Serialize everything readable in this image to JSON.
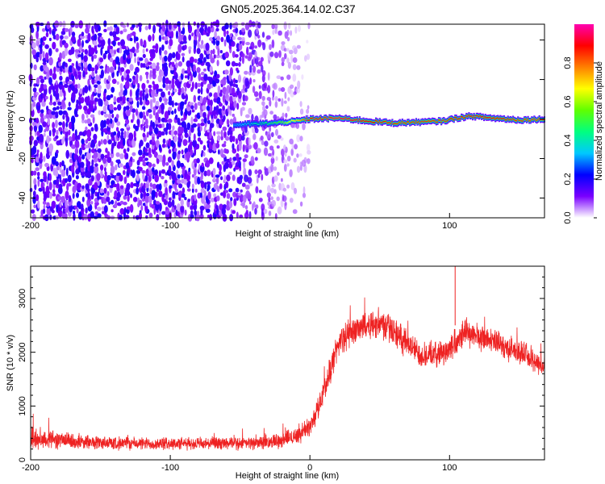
{
  "title": "GN05.2025.364.14.02.C37",
  "chart_data": [
    {
      "type": "heatmap",
      "xlabel": "Height of straight line (km)",
      "ylabel": "Frequency (Hz)",
      "xlim": [
        -200,
        168
      ],
      "ylim": [
        -50,
        48
      ],
      "xticks": [
        -200,
        -100,
        0,
        100
      ],
      "yticks": [
        -40,
        -20,
        0,
        20,
        40
      ],
      "grid": false,
      "colorbar": {
        "label": "Normalized spectral amplitude",
        "range": [
          0,
          1
        ],
        "ticks": [
          0.0,
          0.2,
          0.4,
          0.6,
          0.8
        ],
        "colormap": [
          "#ffffff",
          "#7a00ff",
          "#0000ff",
          "#00c8ff",
          "#00ff80",
          "#60ff00",
          "#ffff00",
          "#ff8000",
          "#ff0000",
          "#ff00b0"
        ]
      },
      "noise_region_x": [
        -200,
        -10
      ],
      "ridge": {
        "x": [
          -55,
          -40,
          -25,
          -10,
          0,
          20,
          40,
          60,
          80,
          95,
          105,
          115,
          130,
          150,
          168
        ],
        "frequency": [
          -3,
          -2.5,
          -2,
          -1,
          0,
          0.5,
          -1,
          -2,
          -1.5,
          -1,
          0.5,
          1.5,
          0.5,
          -0.5,
          0
        ],
        "amplitude": [
          0.3,
          0.4,
          0.5,
          0.7,
          0.9,
          0.95,
          0.9,
          0.85,
          0.85,
          0.85,
          0.9,
          0.9,
          0.9,
          0.85,
          0.85
        ]
      }
    },
    {
      "type": "line",
      "xlabel": "Height of straight line (km)",
      "ylabel": "SNR (10 * v/v)",
      "xlim": [
        -200,
        168
      ],
      "ylim": [
        0,
        3600
      ],
      "xticks": [
        -200,
        -100,
        0,
        100
      ],
      "yticks": [
        0,
        1000,
        2000,
        3000
      ],
      "grid": false,
      "series": [
        {
          "color": "#ee2222",
          "x": [
            -200,
            -190,
            -180,
            -170,
            -160,
            -140,
            -120,
            -100,
            -80,
            -60,
            -40,
            -30,
            -20,
            -10,
            0,
            5,
            10,
            15,
            20,
            30,
            40,
            50,
            60,
            70,
            80,
            90,
            100,
            105,
            110,
            120,
            130,
            140,
            150,
            160,
            168
          ],
          "y": [
            380,
            400,
            370,
            340,
            330,
            310,
            300,
            300,
            300,
            300,
            310,
            330,
            370,
            450,
            620,
            900,
            1300,
            1700,
            2150,
            2400,
            2500,
            2550,
            2400,
            2150,
            1950,
            1950,
            2050,
            2250,
            2400,
            2300,
            2200,
            2100,
            2000,
            1850,
            1750
          ],
          "noise": [
            260,
            240,
            200,
            180,
            160,
            150,
            140,
            140,
            140,
            140,
            140,
            150,
            170,
            200,
            220,
            260,
            280,
            300,
            320,
            320,
            320,
            340,
            320,
            300,
            280,
            280,
            300,
            340,
            320,
            300,
            280,
            280,
            280,
            280,
            260
          ]
        }
      ],
      "annotations": [
        {
          "x": 104,
          "y": 3600,
          "text": ""
        }
      ]
    }
  ]
}
